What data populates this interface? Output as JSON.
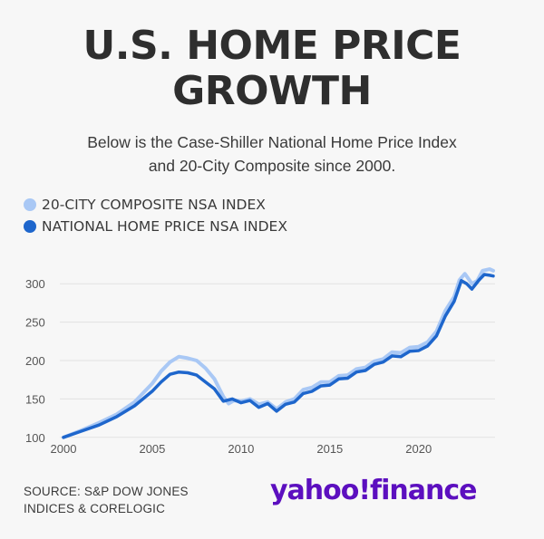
{
  "title_line1": "U.S. HOME PRICE",
  "title_line2": "GROWTH",
  "subtitle_line1": "Below is the Case-Shiller National Home Price Index",
  "subtitle_line2": "and 20-City Composite since 2000.",
  "source_line1": "SOURCE: S&P DOW JONES",
  "source_line2": "INDICES & CORELOGIC",
  "logo": "yahoo!finance",
  "colors": {
    "composite": "#a9c8f5",
    "national": "#1e66cc",
    "grid": "#e2e2e2",
    "axis_text": "#555555"
  },
  "chart_data": {
    "type": "line",
    "ylim": [
      95,
      325
    ],
    "xlim": [
      2000,
      2024.3
    ],
    "yticks": [
      100,
      150,
      200,
      250,
      300
    ],
    "xticks": [
      2000,
      2005,
      2010,
      2015,
      2020
    ],
    "grid": true,
    "legend": "top-left",
    "series": [
      {
        "name": "20-CITY COMPOSITE NSA INDEX",
        "points": [
          [
            2000,
            100
          ],
          [
            2001,
            109
          ],
          [
            2002,
            119
          ],
          [
            2003,
            130
          ],
          [
            2004,
            146
          ],
          [
            2005,
            170
          ],
          [
            2005.5,
            186
          ],
          [
            2006,
            198
          ],
          [
            2006.5,
            205
          ],
          [
            2007,
            203
          ],
          [
            2007.5,
            200
          ],
          [
            2008,
            190
          ],
          [
            2008.5,
            176
          ],
          [
            2009,
            153
          ],
          [
            2009.3,
            144
          ],
          [
            2009.6,
            148
          ],
          [
            2010,
            147
          ],
          [
            2010.5,
            150
          ],
          [
            2011,
            143
          ],
          [
            2011.5,
            146
          ],
          [
            2012,
            137
          ],
          [
            2012.5,
            146
          ],
          [
            2013,
            150
          ],
          [
            2013.5,
            162
          ],
          [
            2014,
            165
          ],
          [
            2014.5,
            172
          ],
          [
            2015,
            172
          ],
          [
            2015.5,
            180
          ],
          [
            2016,
            181
          ],
          [
            2016.5,
            189
          ],
          [
            2017,
            191
          ],
          [
            2017.5,
            199
          ],
          [
            2018,
            202
          ],
          [
            2018.5,
            211
          ],
          [
            2019,
            210
          ],
          [
            2019.5,
            217
          ],
          [
            2020,
            218
          ],
          [
            2020.5,
            224
          ],
          [
            2021,
            238
          ],
          [
            2021.5,
            265
          ],
          [
            2022,
            283
          ],
          [
            2022.3,
            305
          ],
          [
            2022.6,
            313
          ],
          [
            2023,
            300
          ],
          [
            2023.3,
            304
          ],
          [
            2023.6,
            317
          ],
          [
            2024,
            319
          ],
          [
            2024.2,
            317
          ]
        ]
      },
      {
        "name": "NATIONAL HOME PRICE NSA INDEX",
        "points": [
          [
            2000,
            100
          ],
          [
            2001,
            108
          ],
          [
            2002,
            116
          ],
          [
            2003,
            127
          ],
          [
            2004,
            141
          ],
          [
            2005,
            160
          ],
          [
            2005.5,
            172
          ],
          [
            2006,
            182
          ],
          [
            2006.5,
            185
          ],
          [
            2007,
            184
          ],
          [
            2007.5,
            181
          ],
          [
            2008,
            172
          ],
          [
            2008.5,
            163
          ],
          [
            2009,
            147
          ],
          [
            2009.5,
            150
          ],
          [
            2010,
            145
          ],
          [
            2010.5,
            148
          ],
          [
            2011,
            139
          ],
          [
            2011.5,
            144
          ],
          [
            2012,
            134
          ],
          [
            2012.5,
            143
          ],
          [
            2013,
            146
          ],
          [
            2013.5,
            157
          ],
          [
            2014,
            160
          ],
          [
            2014.5,
            167
          ],
          [
            2015,
            168
          ],
          [
            2015.5,
            176
          ],
          [
            2016,
            177
          ],
          [
            2016.5,
            185
          ],
          [
            2017,
            187
          ],
          [
            2017.5,
            195
          ],
          [
            2018,
            198
          ],
          [
            2018.5,
            206
          ],
          [
            2019,
            205
          ],
          [
            2019.5,
            212
          ],
          [
            2020,
            213
          ],
          [
            2020.5,
            219
          ],
          [
            2021,
            232
          ],
          [
            2021.5,
            258
          ],
          [
            2022,
            277
          ],
          [
            2022.4,
            304
          ],
          [
            2022.7,
            300
          ],
          [
            2023,
            293
          ],
          [
            2023.4,
            305
          ],
          [
            2023.7,
            312
          ],
          [
            2024,
            311
          ],
          [
            2024.2,
            310
          ]
        ]
      }
    ]
  }
}
